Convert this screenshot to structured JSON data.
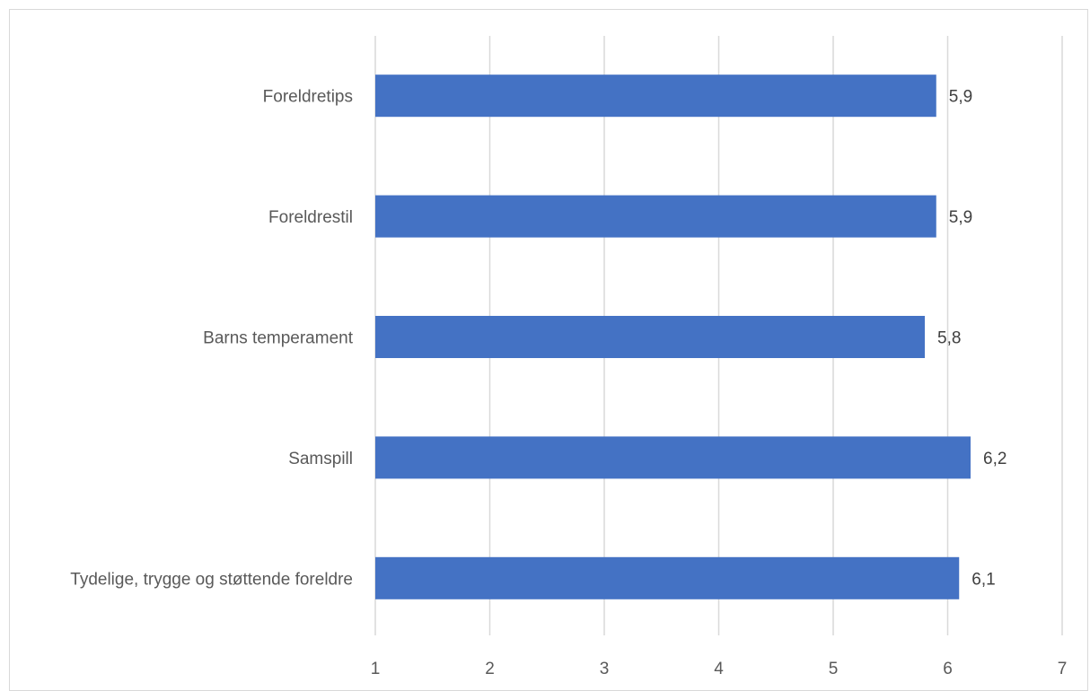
{
  "chart_data": {
    "type": "bar",
    "orientation": "horizontal",
    "categories": [
      "Foreldretips",
      "Foreldrestil",
      "Barns temperament",
      "Samspill",
      "Tydelige, trygge og støttende foreldre"
    ],
    "values": [
      5.9,
      5.9,
      5.8,
      6.2,
      6.1
    ],
    "value_labels": [
      "5,9",
      "5,9",
      "5,8",
      "6,2",
      "6,1"
    ],
    "xlim": [
      1,
      7
    ],
    "x_ticks": [
      "1",
      "2",
      "3",
      "4",
      "5",
      "6",
      "7"
    ],
    "title": "",
    "xlabel": "",
    "ylabel": "",
    "grid": "vertical",
    "legend": "none",
    "bar_color": "#4472C4",
    "grid_color": "#d9d9d9"
  }
}
